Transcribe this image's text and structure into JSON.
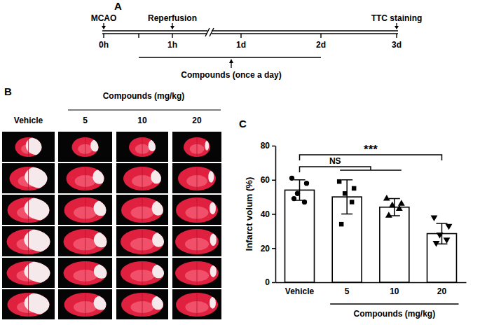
{
  "panel_a": {
    "label": "A",
    "events": [
      "MCAO",
      "Reperfusion",
      "TTC staining"
    ],
    "times": [
      "0h",
      "1h",
      "1d",
      "2d",
      "3d"
    ],
    "treatment": "Compounds (once a day)"
  },
  "panel_b": {
    "label": "B",
    "group_label": "Compounds (mg/kg)",
    "columns": [
      "Vehicle",
      "5",
      "10",
      "20"
    ]
  },
  "chart_data": {
    "type": "bar",
    "panel_label": "C",
    "y_label": "Infarct volum (%)",
    "categories": [
      "Vehicle",
      "5",
      "10",
      "20"
    ],
    "values": [
      54,
      50,
      44,
      28.5
    ],
    "errors": [
      6,
      10,
      5,
      6
    ],
    "points": [
      [
        61,
        58,
        52,
        47,
        49
      ],
      [
        59,
        55,
        52,
        47,
        34
      ],
      [
        49,
        46,
        45,
        43,
        39
      ],
      [
        38,
        33,
        28,
        25,
        23
      ]
    ],
    "x_group_label": "Compounds (mg/kg)",
    "significance": [
      {
        "label": "NS",
        "categories": [
          "Vehicle",
          "5",
          "10"
        ]
      },
      {
        "label": "***",
        "categories": [
          "Vehicle",
          "20"
        ]
      }
    ],
    "color": "#ffffff",
    "ylim": [
      0,
      80
    ],
    "yticks": [
      0,
      20,
      40,
      60,
      80
    ]
  }
}
